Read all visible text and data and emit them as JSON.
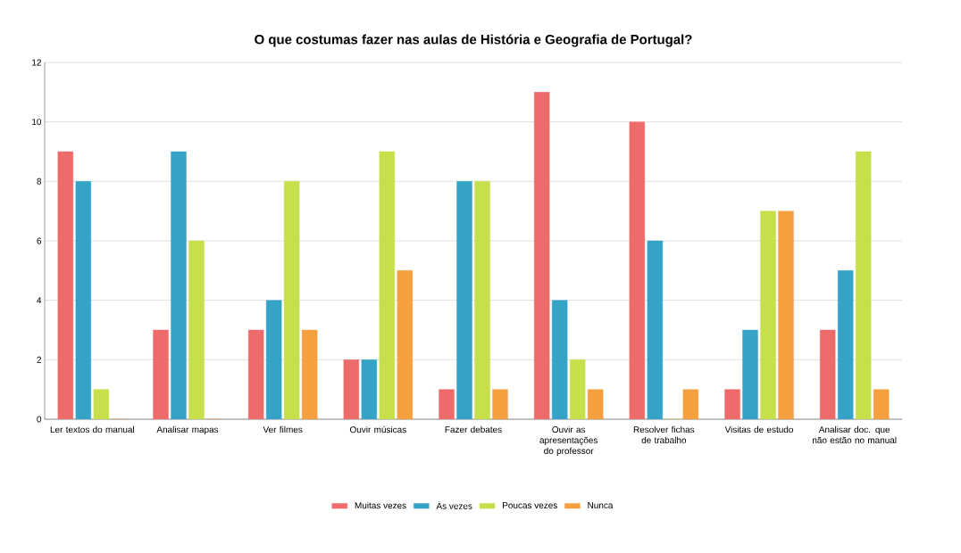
{
  "chart_data": {
    "type": "bar",
    "title": "O que costumas fazer nas aulas de História e Geografia de Portugal?",
    "categories": [
      "Ler textos do manual",
      "Analisar mapas",
      "Ver filmes",
      "Ouvir músicas",
      "Fazer debates",
      "Ouvir as apresentações do professor",
      "Resolver fichas de trabalho",
      "Visitas de estudo",
      "Analisar doc. que não estão no manual"
    ],
    "series": [
      {
        "name": "Muitas vezes",
        "color": "#ee6b6b",
        "values": [
          9,
          3,
          3,
          2,
          1,
          11,
          10,
          1,
          3
        ]
      },
      {
        "name": "Às vezes",
        "color": "#35a3c6",
        "values": [
          8,
          9,
          4,
          2,
          8,
          4,
          6,
          3,
          5
        ]
      },
      {
        "name": "Poucas vezes",
        "color": "#c5e04a",
        "values": [
          1,
          6,
          8,
          9,
          8,
          2,
          0,
          7,
          9
        ]
      },
      {
        "name": "Nunca",
        "color": "#f4a03e",
        "values": [
          0,
          0,
          3,
          5,
          1,
          1,
          1,
          7,
          1
        ]
      }
    ],
    "ylim": [
      0,
      12
    ],
    "yticks": [
      0,
      2,
      4,
      6,
      8,
      10,
      12
    ],
    "grid": "y",
    "legend": "bottom"
  }
}
